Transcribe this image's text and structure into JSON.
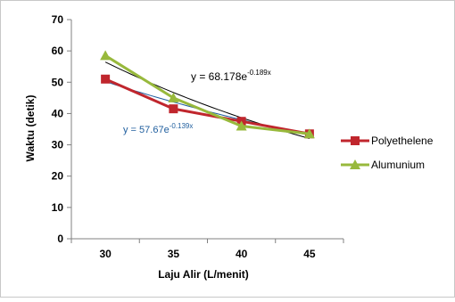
{
  "chart_data": {
    "type": "line",
    "x": [
      30,
      35,
      40,
      45
    ],
    "series": [
      {
        "name": "Polyethelene",
        "values": [
          51,
          41.5,
          37.5,
          33.5
        ],
        "color": "#C0262D",
        "marker": "square"
      },
      {
        "name": "Alumunium",
        "values": [
          58.5,
          45,
          36,
          33.5
        ],
        "color": "#98B93C",
        "marker": "triangle"
      }
    ],
    "trendlines": [
      {
        "type": "exponential",
        "coef": 68.178,
        "exp": -0.189,
        "color": "#000000",
        "label": {
          "base": "y = 68.178e",
          "exponent": "-0.189x"
        }
      },
      {
        "type": "exponential",
        "coef": 57.67,
        "exp": -0.139,
        "color": "#1F5E9E",
        "label": {
          "base": "y = 57.67e",
          "exponent": "-0.139x"
        }
      }
    ],
    "xlabel": "Laju Alir (L/menit)",
    "ylabel": "Waktu (detik)",
    "xticks": [
      "30",
      "35",
      "40",
      "45"
    ],
    "yticks": [
      0,
      10,
      20,
      30,
      40,
      50,
      60,
      70
    ],
    "ylim": [
      0,
      70
    ],
    "legend_position": "right",
    "grid": false
  }
}
